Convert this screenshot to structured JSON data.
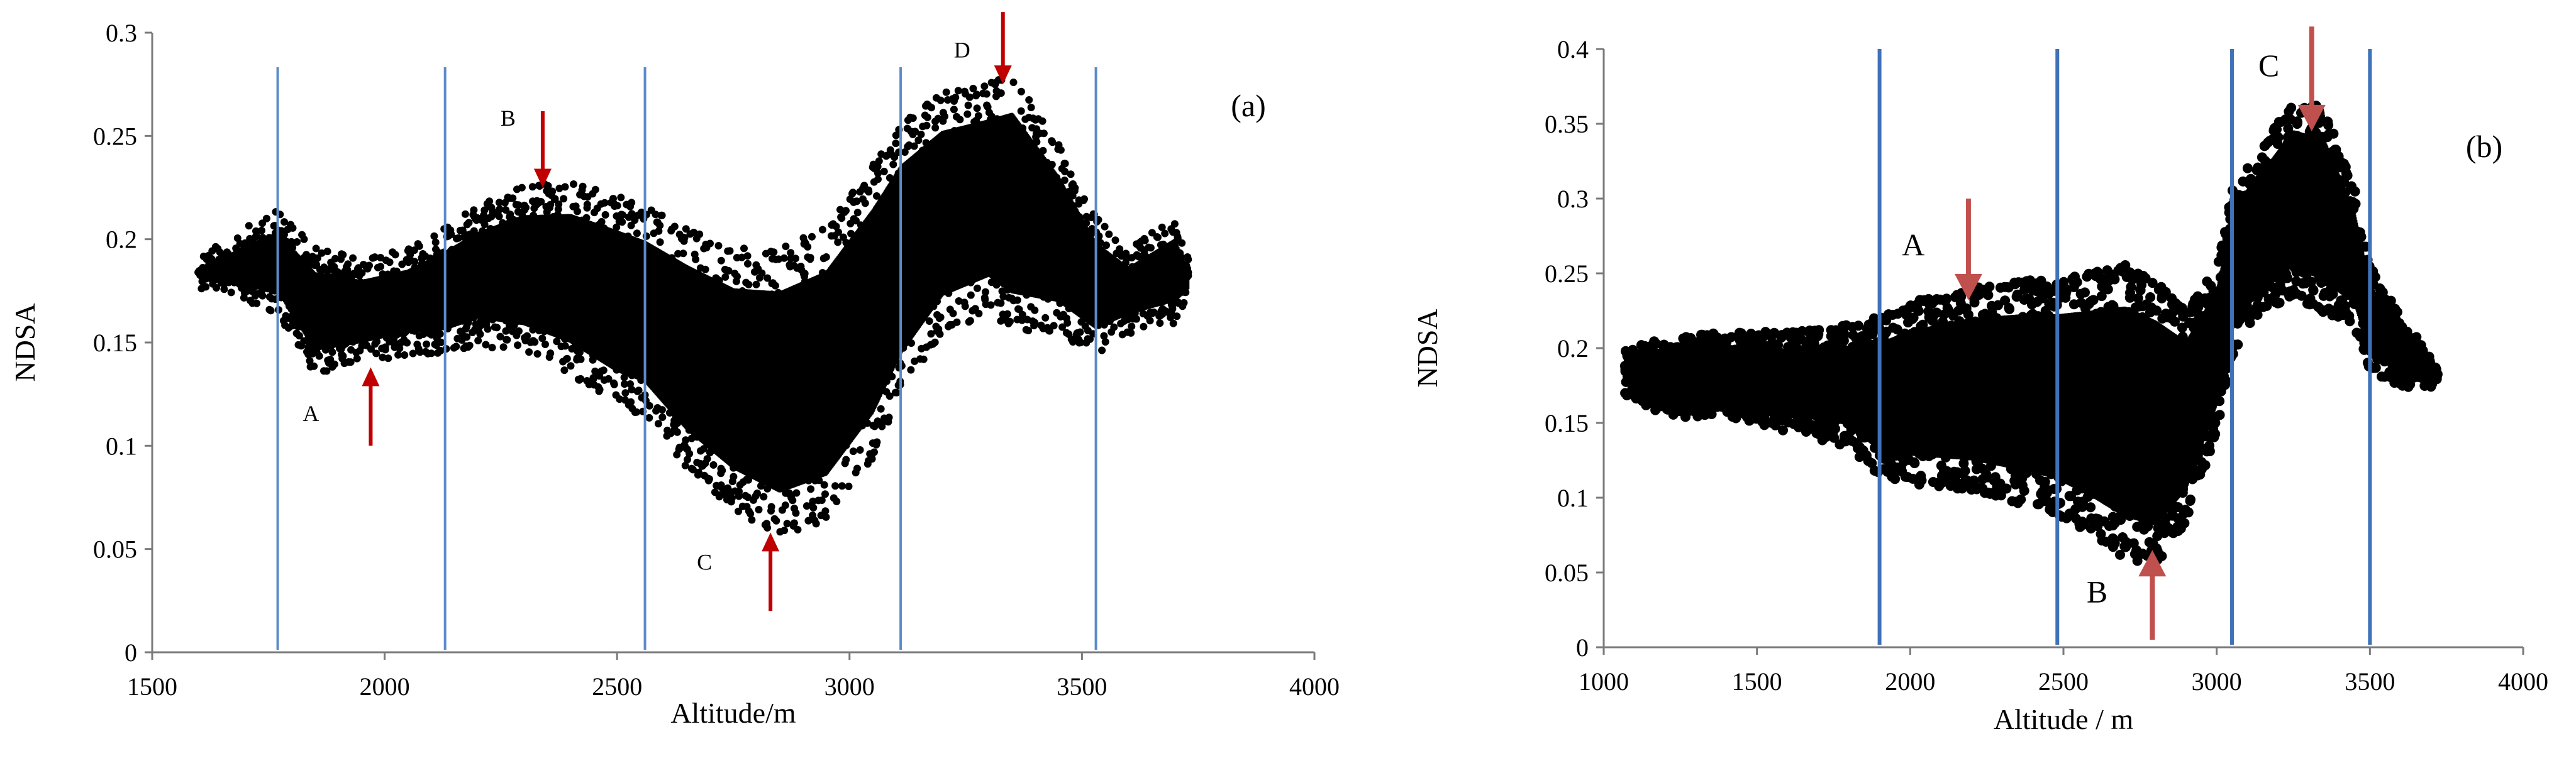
{
  "chart_data": [
    {
      "type": "scatter",
      "panel_label": "(a)",
      "xlabel": "Altitude/m",
      "ylabel": "NDSA",
      "xlim": [
        1500,
        4000
      ],
      "ylim": [
        0,
        0.3
      ],
      "x_ticks": [
        "1500",
        "2000",
        "2500",
        "3000",
        "3500",
        "4000"
      ],
      "y_ticks": [
        "0",
        "0.05",
        "0.1",
        "0.15",
        "0.2",
        "0.25",
        "0.3"
      ],
      "grid": false,
      "point_color": "#000000",
      "divider_color": "#5b8bc9",
      "arrow_color": "#c00000",
      "dividers_x": [
        1770,
        2130,
        2560,
        3110,
        3530
      ],
      "band": {
        "altitude": [
          1600,
          1700,
          1770,
          1850,
          1950,
          2050,
          2130,
          2200,
          2300,
          2400,
          2500,
          2560,
          2650,
          2750,
          2850,
          2950,
          3050,
          3110,
          3200,
          3300,
          3350,
          3450,
          3530,
          3600,
          3700,
          3730
        ],
        "ndsa_min": [
          0.182,
          0.175,
          0.17,
          0.14,
          0.145,
          0.15,
          0.15,
          0.155,
          0.15,
          0.14,
          0.125,
          0.12,
          0.095,
          0.075,
          0.062,
          0.07,
          0.1,
          0.13,
          0.16,
          0.17,
          0.16,
          0.16,
          0.15,
          0.16,
          0.165,
          0.175
        ],
        "ndsa_max": [
          0.185,
          0.2,
          0.208,
          0.19,
          0.185,
          0.19,
          0.2,
          0.21,
          0.22,
          0.222,
          0.215,
          0.21,
          0.2,
          0.19,
          0.19,
          0.2,
          0.23,
          0.25,
          0.265,
          0.27,
          0.275,
          0.24,
          0.205,
          0.19,
          0.205,
          0.185
        ]
      },
      "annotations": [
        {
          "label": "A",
          "x": 1970,
          "y": 0.112,
          "arrow_dir": "up",
          "tip_y": 0.138,
          "tail_y": 0.1
        },
        {
          "label": "B",
          "x": 2340,
          "y": 0.255,
          "arrow_dir": "down",
          "tip_y": 0.225,
          "tail_y": 0.262
        },
        {
          "label": "C",
          "x": 2830,
          "y": 0.04,
          "arrow_dir": "up",
          "tip_y": 0.058,
          "tail_y": 0.02
        },
        {
          "label": "D",
          "x": 3330,
          "y": 0.288,
          "arrow_dir": "down",
          "tip_y": 0.275,
          "tail_y": 0.31
        }
      ]
    },
    {
      "type": "scatter",
      "panel_label": "(b)",
      "xlabel": "Altitude / m",
      "ylabel": "NDSA",
      "xlim": [
        1000,
        4000
      ],
      "ylim": [
        0,
        0.4
      ],
      "x_ticks": [
        "1000",
        "1500",
        "2000",
        "2500",
        "3000",
        "3500",
        "4000"
      ],
      "y_ticks": [
        "0",
        "0.05",
        "0.1",
        "0.15",
        "0.2",
        "0.25",
        "0.3",
        "0.35",
        "0.4"
      ],
      "grid": false,
      "point_color": "#000000",
      "divider_color": "#3f72b8",
      "arrow_color": "#c0504d",
      "dividers_x": [
        1900,
        2480,
        3050,
        3500
      ],
      "band": {
        "altitude": [
          1070,
          1200,
          1400,
          1600,
          1800,
          1900,
          2000,
          2200,
          2400,
          2480,
          2600,
          2700,
          2800,
          2900,
          3000,
          3050,
          3150,
          3250,
          3350,
          3450,
          3500,
          3600,
          3720
        ],
        "ndsa_min": [
          0.175,
          0.16,
          0.16,
          0.15,
          0.14,
          0.12,
          0.115,
          0.11,
          0.1,
          0.095,
          0.08,
          0.065,
          0.06,
          0.09,
          0.15,
          0.2,
          0.23,
          0.24,
          0.23,
          0.22,
          0.19,
          0.18,
          0.18
        ],
        "ndsa_max": [
          0.195,
          0.2,
          0.205,
          0.205,
          0.21,
          0.215,
          0.225,
          0.235,
          0.24,
          0.24,
          0.245,
          0.25,
          0.24,
          0.22,
          0.25,
          0.3,
          0.33,
          0.36,
          0.355,
          0.3,
          0.25,
          0.215,
          0.185
        ]
      },
      "annotations": [
        {
          "label": "A",
          "x": 2010,
          "y": 0.262,
          "arrow_dir": "down",
          "tip_y": 0.232,
          "tail_y": 0.3
        },
        {
          "label": "B",
          "x": 2610,
          "y": 0.03,
          "arrow_dir": "up",
          "tip_y": 0.065,
          "tail_y": 0.005
        },
        {
          "label": "C",
          "x": 3170,
          "y": 0.382,
          "arrow_dir": "down",
          "tip_y": 0.345,
          "tail_y": 0.415
        }
      ]
    }
  ]
}
